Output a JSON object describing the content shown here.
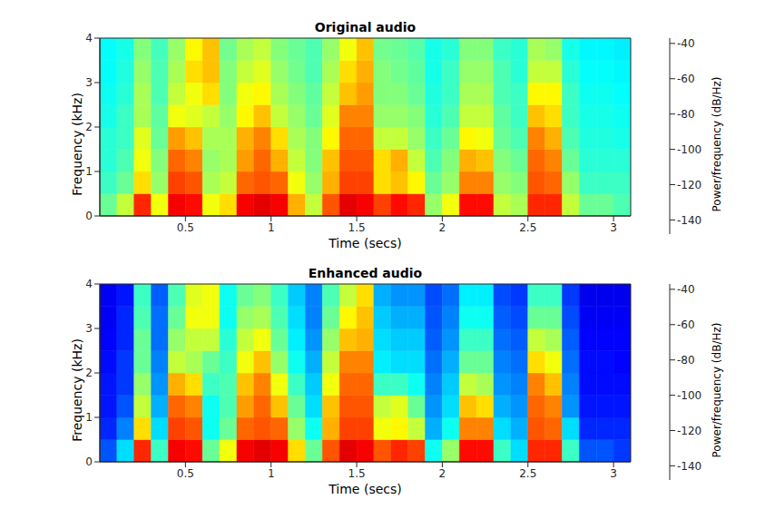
{
  "chart_data": [
    {
      "type": "heatmap",
      "title": "Original audio",
      "x_label": "Time (secs)",
      "y_label": "Frequency (kHz)",
      "xlim": [
        0,
        3.1
      ],
      "xticks": [
        0.5,
        1,
        1.5,
        2,
        2.5,
        3
      ],
      "ylim": [
        0,
        4
      ],
      "yticks": [
        0,
        1,
        2,
        3,
        4
      ],
      "x_bins": [
        0,
        0.1,
        0.2,
        0.3,
        0.4,
        0.5,
        0.6,
        0.7,
        0.8,
        0.9,
        1.0,
        1.1,
        1.2,
        1.3,
        1.4,
        1.5,
        1.6,
        1.7,
        1.8,
        1.9,
        2.0,
        2.1,
        2.2,
        2.3,
        2.4,
        2.5,
        2.6,
        2.7,
        2.8,
        2.9,
        3.0,
        3.1
      ],
      "y_bins": [
        0,
        0.5,
        1,
        1.5,
        2,
        2.5,
        3,
        3.5,
        4
      ],
      "cells": [
        [
          -95,
          -85,
          -55,
          -80,
          -50,
          -52,
          -80,
          -75,
          -50,
          -48,
          -50,
          -70,
          -85,
          -60,
          -48,
          -50,
          -58,
          -52,
          -55,
          -90,
          -80,
          -52,
          -52,
          -85,
          -88,
          -55,
          -55,
          -85,
          -95,
          -95,
          -98
        ],
        [
          -100,
          -95,
          -75,
          -90,
          -58,
          -60,
          -88,
          -85,
          -62,
          -60,
          -62,
          -80,
          -90,
          -70,
          -58,
          -58,
          -75,
          -72,
          -78,
          -95,
          -90,
          -65,
          -65,
          -90,
          -92,
          -60,
          -62,
          -90,
          -100,
          -100,
          -100
        ],
        [
          -102,
          -98,
          -80,
          -92,
          -62,
          -65,
          -90,
          -88,
          -68,
          -62,
          -70,
          -85,
          -92,
          -72,
          -60,
          -60,
          -75,
          -70,
          -85,
          -98,
          -92,
          -70,
          -72,
          -92,
          -95,
          -62,
          -65,
          -95,
          -102,
          -102,
          -102
        ],
        [
          -102,
          -100,
          -82,
          -95,
          -68,
          -72,
          -88,
          -88,
          -70,
          -65,
          -75,
          -88,
          -92,
          -78,
          -62,
          -62,
          -85,
          -85,
          -90,
          -100,
          -95,
          -78,
          -80,
          -95,
          -98,
          -65,
          -70,
          -98,
          -103,
          -103,
          -104
        ],
        [
          -104,
          -100,
          -88,
          -96,
          -80,
          -82,
          -85,
          -90,
          -78,
          -72,
          -85,
          -90,
          -95,
          -82,
          -65,
          -65,
          -90,
          -90,
          -92,
          -102,
          -98,
          -85,
          -85,
          -96,
          -100,
          -72,
          -75,
          -100,
          -104,
          -104,
          -105
        ],
        [
          -105,
          -102,
          -88,
          -98,
          -85,
          -80,
          -75,
          -92,
          -80,
          -78,
          -88,
          -92,
          -96,
          -85,
          -72,
          -68,
          -92,
          -92,
          -95,
          -103,
          -100,
          -88,
          -88,
          -98,
          -100,
          -78,
          -78,
          -100,
          -105,
          -105,
          -106
        ],
        [
          -106,
          -103,
          -90,
          -98,
          -88,
          -75,
          -72,
          -92,
          -85,
          -82,
          -90,
          -94,
          -98,
          -88,
          -75,
          -70,
          -92,
          -94,
          -96,
          -104,
          -100,
          -90,
          -90,
          -98,
          -102,
          -85,
          -85,
          -102,
          -106,
          -106,
          -107
        ],
        [
          -106,
          -104,
          -92,
          -99,
          -90,
          -78,
          -72,
          -94,
          -88,
          -85,
          -92,
          -95,
          -98,
          -90,
          -80,
          -72,
          -94,
          -95,
          -97,
          -104,
          -102,
          -92,
          -92,
          -100,
          -102,
          -88,
          -90,
          -104,
          -107,
          -107,
          -108
        ]
      ],
      "colorbar": {
        "label": "Power/frequency (dB/Hz)",
        "range": [
          -148,
          -37
        ],
        "ticks": [
          -40,
          -60,
          -80,
          -100,
          -120,
          -140
        ]
      }
    },
    {
      "type": "heatmap",
      "title": "Enhanced audio",
      "x_label": "Time (secs)",
      "y_label": "Frequency (kHz)",
      "xlim": [
        0,
        3.1
      ],
      "xticks": [
        0.5,
        1,
        1.5,
        2,
        2.5,
        3
      ],
      "ylim": [
        0,
        4
      ],
      "yticks": [
        0,
        1,
        2,
        3,
        4
      ],
      "x_bins": [
        0,
        0.1,
        0.2,
        0.3,
        0.4,
        0.5,
        0.6,
        0.7,
        0.8,
        0.9,
        1.0,
        1.1,
        1.2,
        1.3,
        1.4,
        1.5,
        1.6,
        1.7,
        1.8,
        1.9,
        2.0,
        2.1,
        2.2,
        2.3,
        2.4,
        2.5,
        2.6,
        2.7,
        2.8,
        2.9,
        3.0,
        3.1
      ],
      "y_bins": [
        0,
        0.5,
        1,
        1.5,
        2,
        2.5,
        3,
        3.5,
        4
      ],
      "cells": [
        [
          -125,
          -110,
          -55,
          -100,
          -50,
          -52,
          -95,
          -80,
          -50,
          -48,
          -50,
          -75,
          -95,
          -60,
          -48,
          -50,
          -60,
          -55,
          -58,
          -105,
          -90,
          -52,
          -52,
          -100,
          -110,
          -55,
          -55,
          -100,
          -125,
          -125,
          -128
        ],
        [
          -130,
          -120,
          -75,
          -110,
          -58,
          -60,
          -105,
          -95,
          -62,
          -60,
          -62,
          -90,
          -105,
          -70,
          -58,
          -58,
          -80,
          -78,
          -85,
          -115,
          -105,
          -65,
          -65,
          -110,
          -115,
          -60,
          -62,
          -110,
          -130,
          -130,
          -130
        ],
        [
          -132,
          -125,
          -85,
          -115,
          -62,
          -65,
          -105,
          -98,
          -68,
          -62,
          -72,
          -95,
          -110,
          -72,
          -60,
          -60,
          -85,
          -82,
          -95,
          -118,
          -110,
          -72,
          -75,
          -115,
          -118,
          -62,
          -65,
          -118,
          -132,
          -132,
          -132
        ],
        [
          -132,
          -128,
          -90,
          -118,
          -70,
          -75,
          -100,
          -98,
          -72,
          -65,
          -80,
          -100,
          -112,
          -80,
          -62,
          -62,
          -100,
          -100,
          -105,
          -120,
          -112,
          -85,
          -88,
          -118,
          -120,
          -65,
          -72,
          -120,
          -133,
          -133,
          -133
        ],
        [
          -133,
          -128,
          -95,
          -120,
          -85,
          -88,
          -95,
          -100,
          -80,
          -72,
          -90,
          -105,
          -115,
          -85,
          -65,
          -65,
          -108,
          -110,
          -110,
          -122,
          -115,
          -95,
          -95,
          -120,
          -122,
          -75,
          -80,
          -122,
          -133,
          -133,
          -134
        ],
        [
          -134,
          -130,
          -95,
          -122,
          -90,
          -85,
          -85,
          -102,
          -85,
          -80,
          -95,
          -108,
          -118,
          -90,
          -72,
          -70,
          -110,
          -112,
          -112,
          -124,
          -118,
          -100,
          -100,
          -122,
          -124,
          -85,
          -88,
          -124,
          -134,
          -134,
          -134
        ],
        [
          -135,
          -130,
          -98,
          -122,
          -95,
          -80,
          -80,
          -105,
          -90,
          -88,
          -98,
          -110,
          -120,
          -95,
          -78,
          -72,
          -112,
          -115,
          -115,
          -125,
          -120,
          -105,
          -105,
          -124,
          -126,
          -95,
          -95,
          -126,
          -135,
          -135,
          -135
        ],
        [
          -135,
          -132,
          -100,
          -124,
          -98,
          -82,
          -80,
          -105,
          -95,
          -92,
          -100,
          -112,
          -120,
          -98,
          -85,
          -75,
          -115,
          -118,
          -118,
          -126,
          -122,
          -108,
          -108,
          -126,
          -128,
          -100,
          -100,
          -128,
          -136,
          -136,
          -136
        ]
      ],
      "colorbar": {
        "label": "Power/frequency (dB/Hz)",
        "range": [
          -148,
          -37
        ],
        "ticks": [
          -40,
          -60,
          -80,
          -100,
          -120,
          -140
        ]
      }
    }
  ]
}
